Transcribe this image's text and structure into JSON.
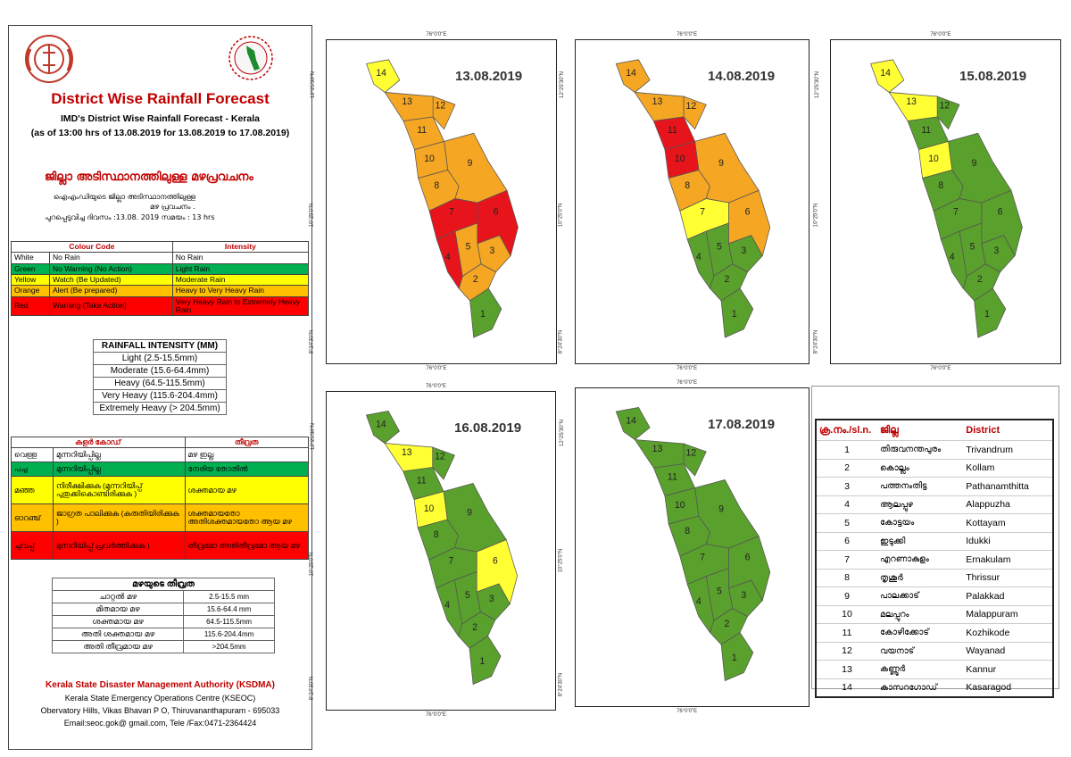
{
  "header": {
    "title": "District Wise Rainfall Forecast",
    "subtitle": "IMD's District Wise Rainfall Forecast - Kerala",
    "issued": "(as of 13:00 hrs of 13.08.2019  for 13.08.2019 to 17.08.2019)",
    "ml_title": "ജില്ലാ അടിസ്ഥാനത്തിലുള്ള  മഴപ്രവചനം",
    "ml_line1": "ഐഎംഡിയുടെ     ജില്ലാ     അടിസ്ഥാനത്തിലുള്ള",
    "ml_line2": "മഴ പ്രവചനം     .",
    "ml_line3": "പുറപ്പെടുവിച്ച        ദിവസം :13.08.     2019   സമയം : 13   hrs"
  },
  "colour_code": {
    "head_code": "Colour Code",
    "head_intensity": "Intensity",
    "rows": [
      {
        "name": "White",
        "code": "No Rain",
        "intensity": "No Rain",
        "color": "#ffffff"
      },
      {
        "name": "Green",
        "code": "No Warning (No Action)",
        "intensity": "Light Rain",
        "color": "#00b050"
      },
      {
        "name": "Yellow",
        "code": "Watch (Be Updated)",
        "intensity": "Moderate Rain",
        "color": "#ffff00"
      },
      {
        "name": "Orange",
        "code": "Alert (Be prepared)",
        "intensity": "Heavy to Very Heavy Rain",
        "color": "#ffc000"
      },
      {
        "name": "Red",
        "code": "Warning (Take Action)",
        "intensity": "Very Heavy Rain to Extremely Heavy Rain",
        "color": "#ff0000"
      }
    ]
  },
  "rainfall_intensity": {
    "title": "RAINFALL INTENSITY (MM)",
    "rows": [
      "Light (2.5-15.5mm)",
      "Moderate (15.6-64.4mm)",
      "Heavy (64.5-115.5mm)",
      "Very Heavy (115.6-204.4mm)",
      "Extremely Heavy (> 204.5mm)"
    ]
  },
  "ml_colour_code": {
    "head_code": "കളർ കോഡ്",
    "head_intensity": "തീവ്രത",
    "rows": [
      {
        "name": "വെള്ള",
        "code": "മുന്നറിയിപ്പില്ല",
        "intensity": "മഴ ഇല്ല",
        "color": "#ffffff"
      },
      {
        "name": "പച്ച",
        "code": "മുന്നറിയിപ്പില്ല",
        "intensity": "നേരിയ തോതിൽ",
        "color": "#00b050"
      },
      {
        "name": "മഞ്ഞ",
        "code": "നിരീക്ഷിക്കുക (മുന്നറിയിപ്പ് പുതുക്കികൊണ്ടിരിക്കുക )",
        "intensity": "ശക്തമായ മഴ",
        "color": "#ffff00"
      },
      {
        "name": "ഓറഞ്ച്",
        "code": "ജാഗ്രത പാലിക്കുക (കരുതിയിരിക്കുക )",
        "intensity": "ശക്തമായതോ അതിശക്തമായതോ ആയ മഴ",
        "color": "#ffc000"
      },
      {
        "name": "ചുവപ്പ്",
        "code": "മുന്നറിയിപ്പ് പ്രവർത്തിക്കുക )",
        "intensity": "തീവ്രമോ അതിതീവ്രമോ ആയ മഴ",
        "color": "#ff0000"
      }
    ]
  },
  "ml_intensity": {
    "title": "മഴയുടെ തീവ്രത",
    "rows": [
      {
        "label": "ചാറ്റൽ മഴ",
        "range": "2.5-15.5 mm"
      },
      {
        "label": "മിതമായ മഴ",
        "range": "15.6-64.4 mm"
      },
      {
        "label": "ശക്തമായ മഴ",
        "range": "64.5-115.5mm"
      },
      {
        "label": "അതി ശക്തമായ മഴ",
        "range": "115.6-204.4mm"
      },
      {
        "label": "അതി തീവ്രമായ മഴ",
        "range": ">204.5mm"
      }
    ]
  },
  "footer": {
    "org": "Kerala State Disaster Management Authority (KSDMA)",
    "centre": "Kerala State Emergency Operations Centre (KSEOC)",
    "address": "Obervatory Hills, Vikas Bhavan P O, Thiruvananthapuram - 695033",
    "contact": "Email:seoc.gok@ gmail.com, Tele /Fax:0471-2364424"
  },
  "axis": {
    "lon": "76°0'0\"E",
    "lat_top": "12°25'30\"N",
    "lat_mid": "10°25'0\"N",
    "lat_bot": "8°24'30\"N"
  },
  "forecasts": [
    {
      "date": "13.08.2019",
      "district_colors": [
        "green",
        "orange",
        "orange",
        "red",
        "orange",
        "red",
        "red",
        "orange",
        "orange",
        "orange",
        "orange",
        "orange",
        "orange",
        "yellow"
      ]
    },
    {
      "date": "14.08.2019",
      "district_colors": [
        "green",
        "green",
        "green",
        "green",
        "green",
        "orange",
        "yellow",
        "orange",
        "orange",
        "red",
        "red",
        "orange",
        "orange",
        "orange"
      ]
    },
    {
      "date": "15.08.2019",
      "district_colors": [
        "green",
        "green",
        "green",
        "green",
        "green",
        "green",
        "green",
        "green",
        "green",
        "yellow",
        "green",
        "green",
        "yellow",
        "yellow"
      ]
    },
    {
      "date": "16.08.2019",
      "district_colors": [
        "green",
        "green",
        "green",
        "green",
        "green",
        "yellow",
        "green",
        "green",
        "green",
        "yellow",
        "green",
        "green",
        "yellow",
        "green"
      ]
    },
    {
      "date": "17.08.2019",
      "district_colors": [
        "green",
        "green",
        "green",
        "green",
        "green",
        "green",
        "green",
        "green",
        "green",
        "green",
        "green",
        "green",
        "green",
        "green"
      ]
    }
  ],
  "district_numbers": [
    "1",
    "2",
    "3",
    "4",
    "5",
    "6",
    "7",
    "8",
    "9",
    "10",
    "11",
    "12",
    "13",
    "14"
  ],
  "district_table": {
    "headers": [
      "ക്ര.നം./sl.n.",
      "ജില്ല",
      "District"
    ],
    "rows": [
      {
        "no": "1",
        "ml": "തിരുവനന്തപുരം",
        "en": "Trivandrum"
      },
      {
        "no": "2",
        "ml": "കൊല്ലം",
        "en": "Kollam"
      },
      {
        "no": "3",
        "ml": "പത്തനംതിട്ട",
        "en": "Pathanamthitta"
      },
      {
        "no": "4",
        "ml": "ആലപ്പുഴ",
        "en": "Alappuzha"
      },
      {
        "no": "5",
        "ml": "കോട്ടയം",
        "en": "Kottayam"
      },
      {
        "no": "6",
        "ml": "ഇടുക്കി",
        "en": "Idukki"
      },
      {
        "no": "7",
        "ml": "എറണാകുളം",
        "en": "Ernakulam"
      },
      {
        "no": "8",
        "ml": "തൃശൂർ",
        "en": "Thrissur"
      },
      {
        "no": "9",
        "ml": "പാലക്കാട്",
        "en": "Palakkad"
      },
      {
        "no": "10",
        "ml": "മലപ്പുറം",
        "en": "Malappuram"
      },
      {
        "no": "11",
        "ml": "കോഴിക്കോട്",
        "en": "Kozhikode"
      },
      {
        "no": "12",
        "ml": "വയനാട്",
        "en": "Wayanad"
      },
      {
        "no": "13",
        "ml": "കണ്ണൂർ",
        "en": "Kannur"
      },
      {
        "no": "14",
        "ml": "കാസറഗോഡ്",
        "en": "Kasaragod"
      }
    ]
  },
  "palette": {
    "green": "#5aa02c",
    "yellow": "#ffff33",
    "orange": "#f5a623",
    "red": "#e8141b"
  }
}
